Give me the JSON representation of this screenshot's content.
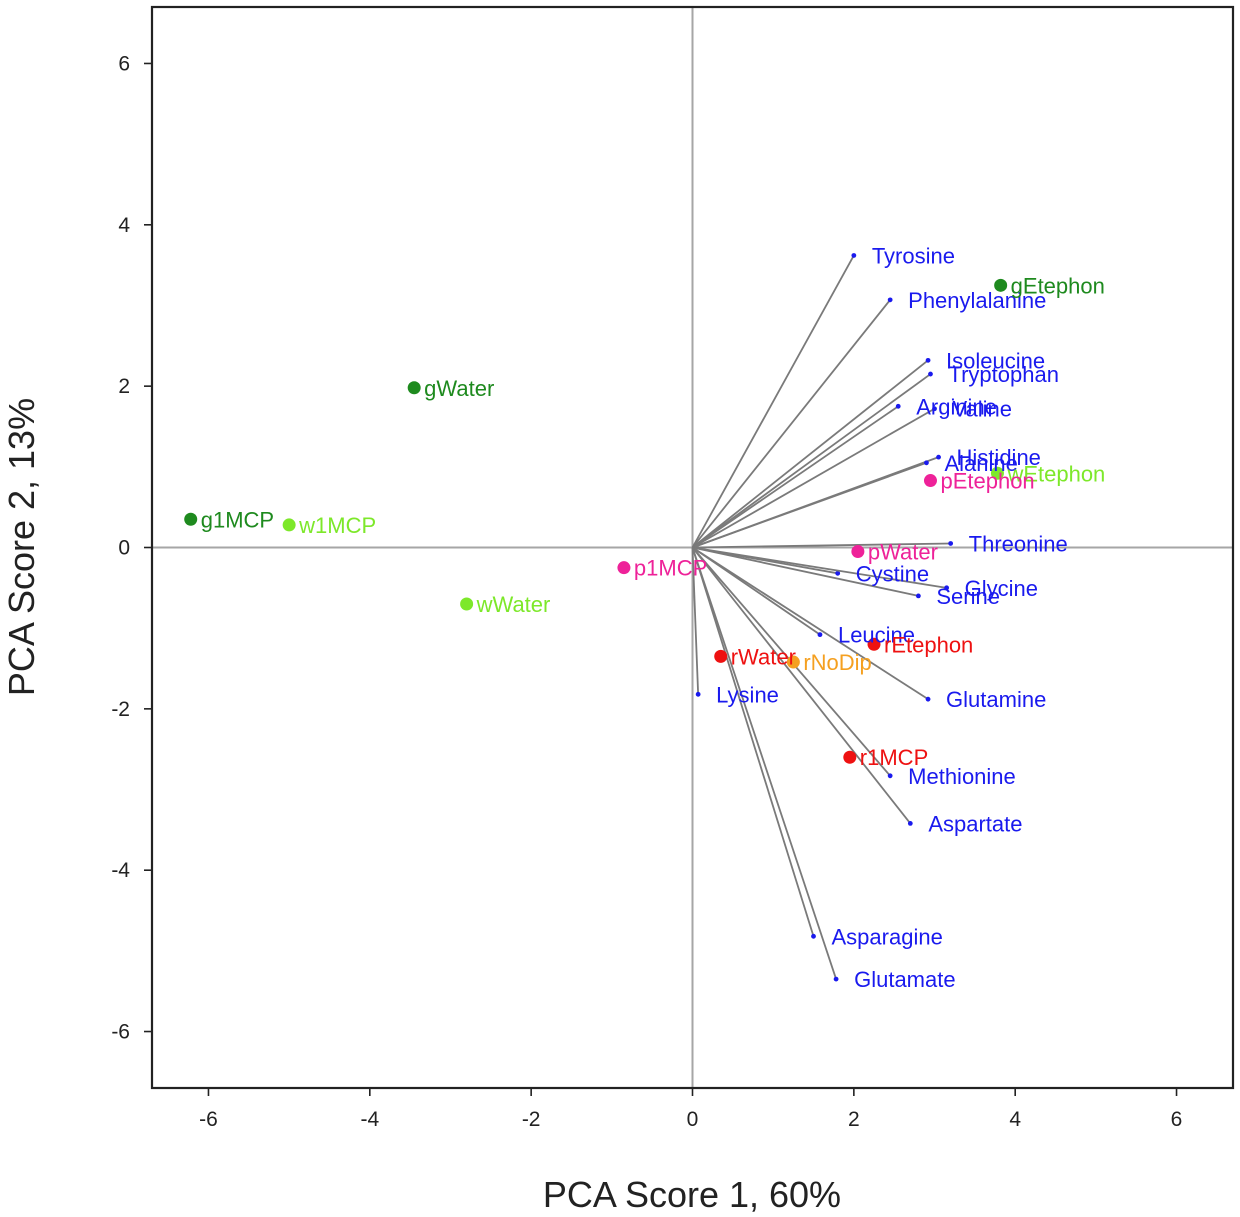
{
  "chart_data": {
    "type": "scatter",
    "title": "",
    "xlabel": "PCA Score 1, 60%",
    "ylabel": "PCA Score 2, 13%",
    "xlim": [
      -6.7,
      6.7
    ],
    "ylim": [
      -6.7,
      6.7
    ],
    "xticks": [
      -6,
      -4,
      -2,
      0,
      2,
      4,
      6
    ],
    "yticks": [
      -6,
      -4,
      -2,
      0,
      2,
      4,
      6
    ],
    "reference_lines": {
      "x": 0,
      "y": 0,
      "color": "#a6a6a6"
    },
    "loading_color": "#1a1aee",
    "loading_line_color": "#7a7a7a",
    "loadings": [
      {
        "name": "Tyrosine",
        "x": 2.0,
        "y": 3.62
      },
      {
        "name": "Phenylalanine",
        "x": 2.45,
        "y": 3.07
      },
      {
        "name": "Isoleucine",
        "x": 2.92,
        "y": 2.32
      },
      {
        "name": "Tryptophan",
        "x": 2.95,
        "y": 2.15
      },
      {
        "name": "Arginine",
        "x": 2.55,
        "y": 1.75
      },
      {
        "name": "Valine",
        "x": 3.0,
        "y": 1.72
      },
      {
        "name": "Histidine",
        "x": 3.05,
        "y": 1.12
      },
      {
        "name": "Alanine",
        "x": 2.9,
        "y": 1.05
      },
      {
        "name": "Threonine",
        "x": 3.2,
        "y": 0.05
      },
      {
        "name": "Cystine",
        "x": 1.8,
        "y": -0.32
      },
      {
        "name": "Glycine",
        "x": 3.15,
        "y": -0.5
      },
      {
        "name": "Serine",
        "x": 2.8,
        "y": -0.6
      },
      {
        "name": "Leucine",
        "x": 1.58,
        "y": -1.08
      },
      {
        "name": "Glutamine",
        "x": 2.92,
        "y": -1.88
      },
      {
        "name": "Lysine",
        "x": 0.07,
        "y": -1.82
      },
      {
        "name": "Methionine",
        "x": 2.45,
        "y": -2.83
      },
      {
        "name": "Aspartate",
        "x": 2.7,
        "y": -3.42
      },
      {
        "name": "Asparagine",
        "x": 1.5,
        "y": -4.82
      },
      {
        "name": "Glutamate",
        "x": 1.78,
        "y": -5.35
      }
    ],
    "series": [
      {
        "name": "green",
        "color": "#1e8a1e",
        "points": [
          {
            "label": "gEtephon",
            "x": 3.82,
            "y": 3.25
          },
          {
            "label": "gWater",
            "x": -3.45,
            "y": 1.98
          },
          {
            "label": "g1MCP",
            "x": -6.22,
            "y": 0.35
          }
        ]
      },
      {
        "name": "light-green",
        "color": "#7de82a",
        "points": [
          {
            "label": "wEtephon",
            "x": 3.78,
            "y": 0.92
          },
          {
            "label": "w1MCP",
            "x": -5.0,
            "y": 0.28
          },
          {
            "label": "wWater",
            "x": -2.8,
            "y": -0.7
          }
        ]
      },
      {
        "name": "pink",
        "color": "#ee2299",
        "points": [
          {
            "label": "pEtephon",
            "x": 2.95,
            "y": 0.83
          },
          {
            "label": "pWater",
            "x": 2.05,
            "y": -0.05
          },
          {
            "label": "p1MCP",
            "x": -0.85,
            "y": -0.25
          }
        ]
      },
      {
        "name": "red",
        "color": "#ee1111",
        "points": [
          {
            "label": "rEtephon",
            "x": 2.25,
            "y": -1.2
          },
          {
            "label": "rWater",
            "x": 0.35,
            "y": -1.35
          },
          {
            "label": "r1MCP",
            "x": 1.95,
            "y": -2.6
          }
        ]
      },
      {
        "name": "orange",
        "color": "#f5a020",
        "points": [
          {
            "label": "rNoDip",
            "x": 1.25,
            "y": -1.42
          }
        ]
      }
    ]
  }
}
